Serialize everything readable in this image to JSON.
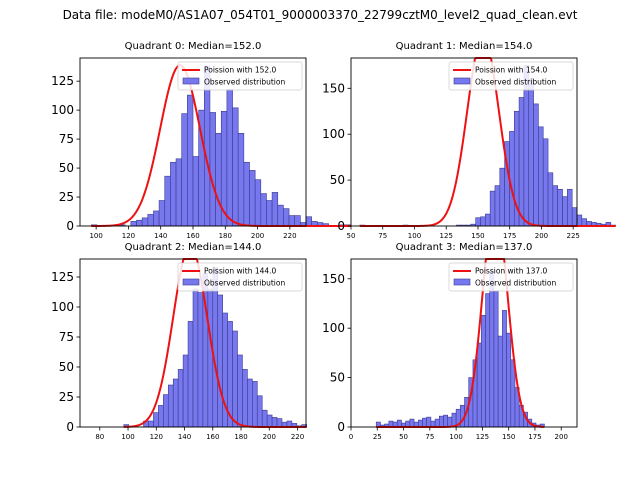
{
  "figure": {
    "title": "Data file: modeM0/AS1A07_054T01_9000003370_22799cztM0_level2_quad_clean.evt"
  },
  "colors": {
    "bar_fill": "#7777ee",
    "bar_stroke": "#3b3b8f",
    "curve": "#ee1111",
    "axis": "#000000"
  },
  "chart_data": [
    {
      "type": "bar",
      "title": "Quadrant 0: Median=152.0",
      "xlim": [
        90,
        230
      ],
      "ylim": [
        0,
        145
      ],
      "xticks": [
        100,
        120,
        140,
        160,
        180,
        200,
        220
      ],
      "yticks": [
        0,
        25,
        50,
        75,
        100,
        125
      ],
      "bin_width": 3.5,
      "bin_start": 97,
      "counts": [
        1,
        0,
        0,
        0,
        0,
        1,
        0,
        4,
        5,
        7,
        10,
        13,
        22,
        43,
        55,
        58,
        97,
        113,
        60,
        100,
        138,
        98,
        80,
        99,
        118,
        102,
        80,
        55,
        48,
        40,
        28,
        22,
        29,
        18,
        15,
        9,
        9,
        3,
        8,
        4,
        3,
        2,
        0,
        0,
        1,
        1
      ],
      "curve_mean": 152.0,
      "curve_n": 1225,
      "legend": [
        "Poission with 152.0",
        "Observed distribution"
      ]
    },
    {
      "type": "bar",
      "title": "Quadrant 1: Median=154.0",
      "xlim": [
        50,
        228
      ],
      "ylim": [
        0,
        183
      ],
      "xticks": [
        50,
        75,
        100,
        125,
        150,
        175,
        200,
        225
      ],
      "yticks": [
        0,
        50,
        100,
        150
      ],
      "bin_width": 3.8,
      "bin_start": 57,
      "counts": [
        1,
        0,
        0,
        0,
        0,
        0,
        0,
        0,
        0,
        1,
        0,
        0,
        0,
        0,
        0,
        0,
        0,
        0,
        0,
        0,
        1,
        1,
        1,
        2,
        9,
        10,
        13,
        38,
        44,
        63,
        92,
        103,
        125,
        140,
        175,
        160,
        133,
        108,
        95,
        58,
        44,
        40,
        32,
        40,
        20,
        12,
        8,
        5,
        4,
        3,
        2,
        4,
        1
      ],
      "curve_mean": 154.0,
      "curve_n": 1700,
      "legend": [
        "Poission with 154.0",
        "Observed distribution"
      ]
    },
    {
      "type": "bar",
      "title": "Quadrant 2: Median=144.0",
      "xlim": [
        66,
        226
      ],
      "ylim": [
        0,
        140
      ],
      "xticks": [
        80,
        100,
        120,
        140,
        160,
        180,
        200,
        220
      ],
      "yticks": [
        0,
        25,
        50,
        75,
        100,
        125
      ],
      "bin_width": 3.5,
      "bin_start": 97,
      "counts": [
        2,
        0,
        0,
        0,
        5,
        5,
        12,
        18,
        27,
        35,
        40,
        48,
        60,
        88,
        115,
        112,
        128,
        115,
        133,
        110,
        95,
        88,
        80,
        60,
        48,
        40,
        38,
        26,
        14,
        10,
        8,
        7,
        4,
        5,
        3,
        1,
        2
      ],
      "curve_mean": 144.0,
      "curve_n": 1300,
      "legend": [
        "Poission with 144.0",
        "Observed distribution"
      ]
    },
    {
      "type": "bar",
      "title": "Quadrant 3: Median=137.0",
      "xlim": [
        0,
        215
      ],
      "ylim": [
        0,
        170
      ],
      "xticks": [
        0,
        25,
        50,
        75,
        100,
        125,
        150,
        175,
        200
      ],
      "yticks": [
        0,
        50,
        100,
        150
      ],
      "bin_width": 4,
      "bin_start": 24,
      "counts": [
        5,
        2,
        3,
        6,
        5,
        7,
        4,
        6,
        8,
        5,
        7,
        9,
        10,
        6,
        8,
        11,
        12,
        10,
        14,
        18,
        22,
        30,
        50,
        68,
        85,
        113,
        135,
        158,
        138,
        92,
        118,
        95,
        68,
        40,
        22,
        15,
        8,
        4,
        2,
        3
      ],
      "curve_mean": 137.0,
      "curve_n": 1650,
      "legend": [
        "Poission with 137.0",
        "Observed distribution"
      ]
    }
  ]
}
